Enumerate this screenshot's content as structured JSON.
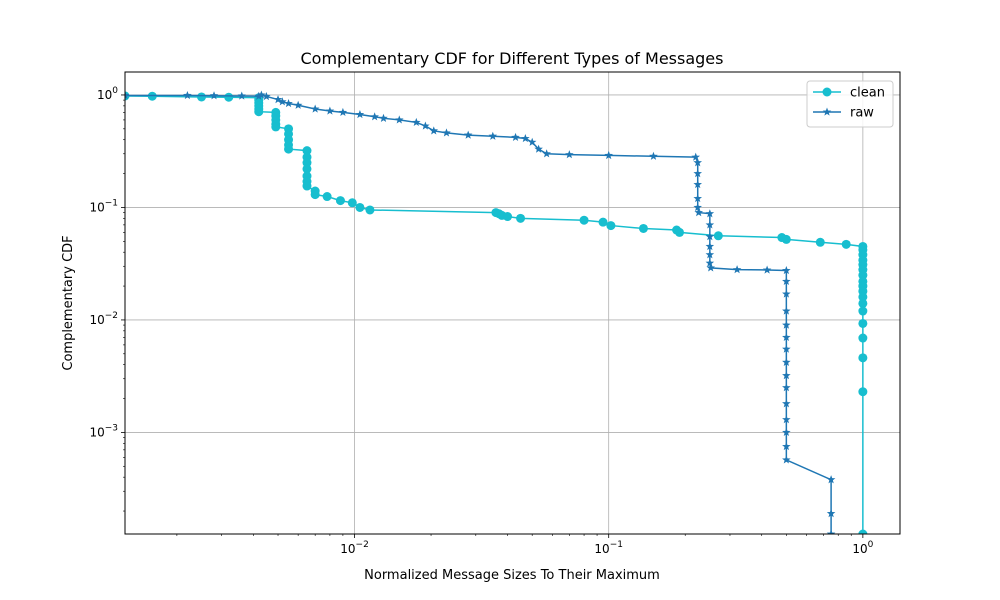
{
  "chart_data": {
    "type": "line",
    "title": "Complementary CDF for Different Types of Messages",
    "xlabel": "Normalized Message Sizes To Their Maximum",
    "ylabel": "Complementary CDF",
    "xscale": "log",
    "yscale": "log",
    "xlim": [
      0.00125,
      1.4
    ],
    "ylim": [
      0.000125,
      1.6
    ],
    "grid": true,
    "legend_position": "top-right",
    "x_tick_labels": [
      {
        "value": 0.01,
        "base": "10",
        "exp": "−2"
      },
      {
        "value": 0.1,
        "base": "10",
        "exp": "−1"
      },
      {
        "value": 1,
        "base": "10",
        "exp": "0"
      }
    ],
    "y_tick_labels": [
      {
        "value": 0.001,
        "base": "10",
        "exp": "−3"
      },
      {
        "value": 0.01,
        "base": "10",
        "exp": "−2"
      },
      {
        "value": 0.1,
        "base": "10",
        "exp": "−1"
      },
      {
        "value": 1,
        "base": "10",
        "exp": "0"
      }
    ],
    "series": [
      {
        "name": "clean",
        "color": "#17becf",
        "marker": "circle",
        "points": [
          [
            0.00125,
            0.98
          ],
          [
            0.0016,
            0.975
          ],
          [
            0.0025,
            0.96
          ],
          [
            0.0032,
            0.955
          ],
          [
            0.0042,
            0.945
          ],
          [
            0.0042,
            0.9
          ],
          [
            0.0042,
            0.85
          ],
          [
            0.0042,
            0.8
          ],
          [
            0.0042,
            0.75
          ],
          [
            0.0042,
            0.71
          ],
          [
            0.0049,
            0.7
          ],
          [
            0.0049,
            0.65
          ],
          [
            0.0049,
            0.6
          ],
          [
            0.0049,
            0.55
          ],
          [
            0.0049,
            0.52
          ],
          [
            0.0055,
            0.5
          ],
          [
            0.0055,
            0.45
          ],
          [
            0.0055,
            0.4
          ],
          [
            0.0055,
            0.36
          ],
          [
            0.0055,
            0.33
          ],
          [
            0.0065,
            0.32
          ],
          [
            0.0065,
            0.28
          ],
          [
            0.0065,
            0.25
          ],
          [
            0.0065,
            0.22
          ],
          [
            0.0065,
            0.19
          ],
          [
            0.0065,
            0.17
          ],
          [
            0.0065,
            0.155
          ],
          [
            0.007,
            0.14
          ],
          [
            0.007,
            0.13
          ],
          [
            0.0078,
            0.125
          ],
          [
            0.0088,
            0.115
          ],
          [
            0.0098,
            0.11
          ],
          [
            0.0105,
            0.1
          ],
          [
            0.0115,
            0.095
          ],
          [
            0.036,
            0.09
          ],
          [
            0.037,
            0.088
          ],
          [
            0.038,
            0.085
          ],
          [
            0.04,
            0.083
          ],
          [
            0.045,
            0.08
          ],
          [
            0.08,
            0.077
          ],
          [
            0.095,
            0.074
          ],
          [
            0.102,
            0.069
          ],
          [
            0.137,
            0.065
          ],
          [
            0.185,
            0.063
          ],
          [
            0.19,
            0.06
          ],
          [
            0.27,
            0.056
          ],
          [
            0.48,
            0.054
          ],
          [
            0.5,
            0.052
          ],
          [
            0.68,
            0.049
          ],
          [
            0.86,
            0.047
          ],
          [
            1.0,
            0.045
          ],
          [
            1.0,
            0.042
          ],
          [
            1.0,
            0.038
          ],
          [
            1.0,
            0.034
          ],
          [
            1.0,
            0.031
          ],
          [
            1.0,
            0.028
          ],
          [
            1.0,
            0.025
          ],
          [
            1.0,
            0.022
          ],
          [
            1.0,
            0.02
          ],
          [
            1.0,
            0.018
          ],
          [
            1.0,
            0.016
          ],
          [
            1.0,
            0.014
          ],
          [
            1.0,
            0.012
          ],
          [
            1.0,
            0.0093
          ],
          [
            1.0,
            0.0069
          ],
          [
            1.0,
            0.0046
          ],
          [
            1.0,
            0.0023
          ],
          [
            1.0,
            0.000125
          ]
        ]
      },
      {
        "name": "raw",
        "color": "#1f77b4",
        "marker": "star",
        "points": [
          [
            0.00125,
            0.99
          ],
          [
            0.0022,
            0.99
          ],
          [
            0.0028,
            0.985
          ],
          [
            0.0036,
            0.98
          ],
          [
            0.0042,
            0.975
          ],
          [
            0.0043,
            1.0
          ],
          [
            0.0045,
            0.97
          ],
          [
            0.005,
            0.91
          ],
          [
            0.0052,
            0.87
          ],
          [
            0.0055,
            0.84
          ],
          [
            0.006,
            0.81
          ],
          [
            0.007,
            0.75
          ],
          [
            0.008,
            0.72
          ],
          [
            0.009,
            0.7
          ],
          [
            0.0105,
            0.67
          ],
          [
            0.012,
            0.64
          ],
          [
            0.013,
            0.62
          ],
          [
            0.015,
            0.6
          ],
          [
            0.0175,
            0.57
          ],
          [
            0.019,
            0.53
          ],
          [
            0.0205,
            0.48
          ],
          [
            0.023,
            0.46
          ],
          [
            0.028,
            0.44
          ],
          [
            0.035,
            0.43
          ],
          [
            0.043,
            0.42
          ],
          [
            0.047,
            0.41
          ],
          [
            0.05,
            0.38
          ],
          [
            0.053,
            0.33
          ],
          [
            0.057,
            0.3
          ],
          [
            0.07,
            0.295
          ],
          [
            0.1,
            0.29
          ],
          [
            0.15,
            0.285
          ],
          [
            0.22,
            0.28
          ],
          [
            0.224,
            0.25
          ],
          [
            0.224,
            0.2
          ],
          [
            0.224,
            0.16
          ],
          [
            0.224,
            0.12
          ],
          [
            0.224,
            0.1
          ],
          [
            0.226,
            0.09
          ],
          [
            0.25,
            0.088
          ],
          [
            0.25,
            0.07
          ],
          [
            0.25,
            0.055
          ],
          [
            0.25,
            0.045
          ],
          [
            0.25,
            0.038
          ],
          [
            0.25,
            0.032
          ],
          [
            0.252,
            0.029
          ],
          [
            0.32,
            0.028
          ],
          [
            0.42,
            0.0278
          ],
          [
            0.5,
            0.0275
          ],
          [
            0.5,
            0.022
          ],
          [
            0.5,
            0.017
          ],
          [
            0.5,
            0.012
          ],
          [
            0.5,
            0.009
          ],
          [
            0.5,
            0.007
          ],
          [
            0.5,
            0.0055
          ],
          [
            0.5,
            0.0042
          ],
          [
            0.5,
            0.0032
          ],
          [
            0.5,
            0.0025
          ],
          [
            0.5,
            0.0018
          ],
          [
            0.5,
            0.0013
          ],
          [
            0.5,
            0.001
          ],
          [
            0.5,
            0.00075
          ],
          [
            0.5,
            0.00057
          ],
          [
            0.75,
            0.00038
          ],
          [
            0.75,
            0.00019
          ],
          [
            0.75,
            0.000125
          ]
        ]
      }
    ]
  }
}
